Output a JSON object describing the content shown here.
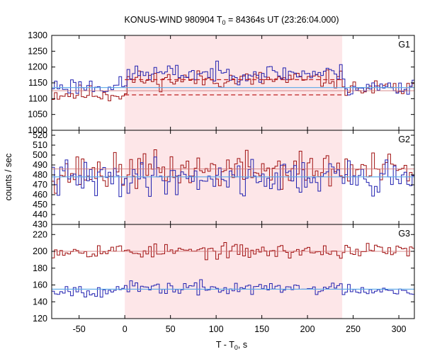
{
  "chart_data": {
    "type": "line",
    "title_main": "KONUS-WIND 980904 T",
    "title_sub": "0",
    "title_rest": " = 84364s UT (23:26:04.000)",
    "ylabel": "counts / sec",
    "xlabel_main": "T - T",
    "xlabel_sub": "0",
    "xlabel_rest": ", s",
    "xlim": [
      -80,
      317
    ],
    "xticks": [
      -50,
      0,
      50,
      100,
      150,
      200,
      250,
      300
    ],
    "shaded_interval": [
      0,
      238
    ],
    "colors": {
      "red_series": "#a01010",
      "blue_series": "#2020b0",
      "shade": "#fde6e8",
      "bg_red": "#d07070",
      "bg_blue": "#5aa8e8",
      "dashed": "#c02020"
    },
    "panels": [
      {
        "label": "G1",
        "ylim": [
          1000,
          1300
        ],
        "yticks": [
          1000,
          1050,
          1100,
          1150,
          1200,
          1250,
          1300
        ],
        "background_red": 1125,
        "background_blue": 1135,
        "dashed_lines": [
          {
            "value": 1112,
            "x_start": 0,
            "x_end": 238
          },
          {
            "value": 1160,
            "x_start": 0,
            "x_end": 238
          }
        ],
        "series": [
          {
            "color_key": "red_series",
            "mean_pre": 1115,
            "mean_in": 1160,
            "mean_post": 1130,
            "noise": 20,
            "seed": 11
          },
          {
            "color_key": "blue_series",
            "mean_pre": 1140,
            "mean_in": 1180,
            "mean_post": 1135,
            "noise": 20,
            "seed": 23
          }
        ]
      },
      {
        "label": "G2",
        "ylim": [
          430,
          525
        ],
        "yticks": [
          430,
          440,
          450,
          460,
          470,
          480,
          490,
          500,
          510,
          520
        ],
        "background_red": 486,
        "background_blue": 478,
        "dashed_lines": [],
        "series": [
          {
            "color_key": "red_series",
            "mean_pre": 482,
            "mean_in": 485,
            "mean_post": 484,
            "noise": 13,
            "seed": 37
          },
          {
            "color_key": "blue_series",
            "mean_pre": 476,
            "mean_in": 478,
            "mean_post": 477,
            "noise": 13,
            "seed": 41
          }
        ]
      },
      {
        "label": "G3",
        "ylim": [
          120,
          232
        ],
        "yticks": [
          120,
          140,
          160,
          180,
          200,
          220
        ],
        "background_red": 200,
        "background_blue": 155,
        "dashed_lines": [],
        "series": [
          {
            "color_key": "red_series",
            "mean_pre": 201,
            "mean_in": 200,
            "mean_post": 201,
            "noise": 6,
            "seed": 53
          },
          {
            "color_key": "blue_series",
            "mean_pre": 154,
            "mean_in": 156,
            "mean_post": 155,
            "noise": 5.5,
            "seed": 67
          }
        ]
      }
    ]
  }
}
